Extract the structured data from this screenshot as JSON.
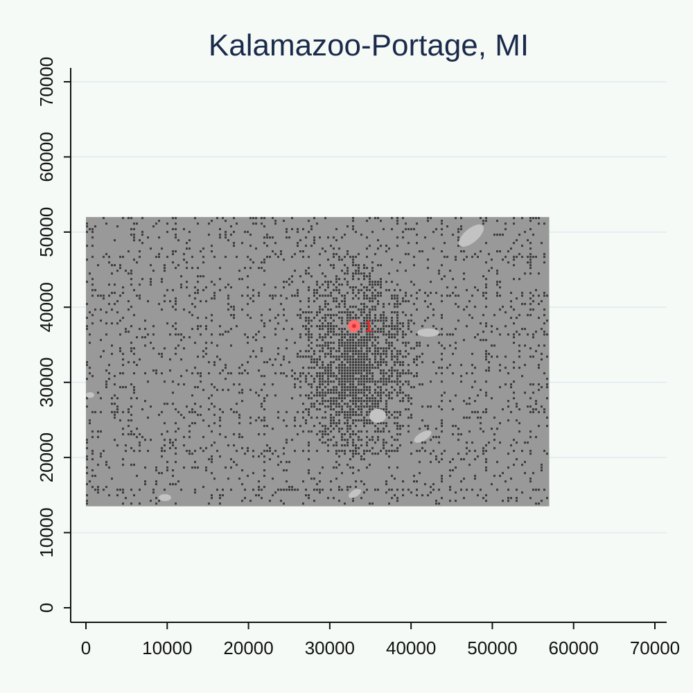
{
  "title": "Kalamazoo-Portage, MI",
  "colors": {
    "background": "#f5faf7",
    "urban_fill": "#999999",
    "dense_dev": "#3a3a3a",
    "water": "#c3c3c3",
    "marker": "#ff6b6b",
    "marker_core": "#e03030",
    "title": "#1a2a4a"
  },
  "chart_data": {
    "type": "scatter",
    "title": "Kalamazoo-Portage, MI",
    "xlabel": "",
    "ylabel": "",
    "xlim": [
      -2000,
      72000
    ],
    "ylim": [
      -2000,
      72000
    ],
    "grid": true,
    "x_ticks": [
      0,
      10000,
      20000,
      30000,
      40000,
      50000,
      60000,
      70000
    ],
    "y_ticks": [
      0,
      10000,
      20000,
      30000,
      40000,
      50000,
      60000,
      70000
    ],
    "x_tick_labels": [
      "0",
      "10000",
      "20000",
      "30000",
      "40000",
      "50000",
      "60000",
      "70000"
    ],
    "y_tick_labels": [
      "0",
      "10000",
      "20000",
      "30000",
      "40000",
      "50000",
      "60000",
      "70000"
    ],
    "raster_extent": {
      "x": [
        0,
        57000
      ],
      "y": [
        13500,
        52000
      ]
    },
    "core_extent": {
      "x": [
        27000,
        39000
      ],
      "y": [
        22000,
        44000
      ]
    },
    "points": [
      {
        "label": "1",
        "x": 33500,
        "y": 37500
      }
    ]
  }
}
